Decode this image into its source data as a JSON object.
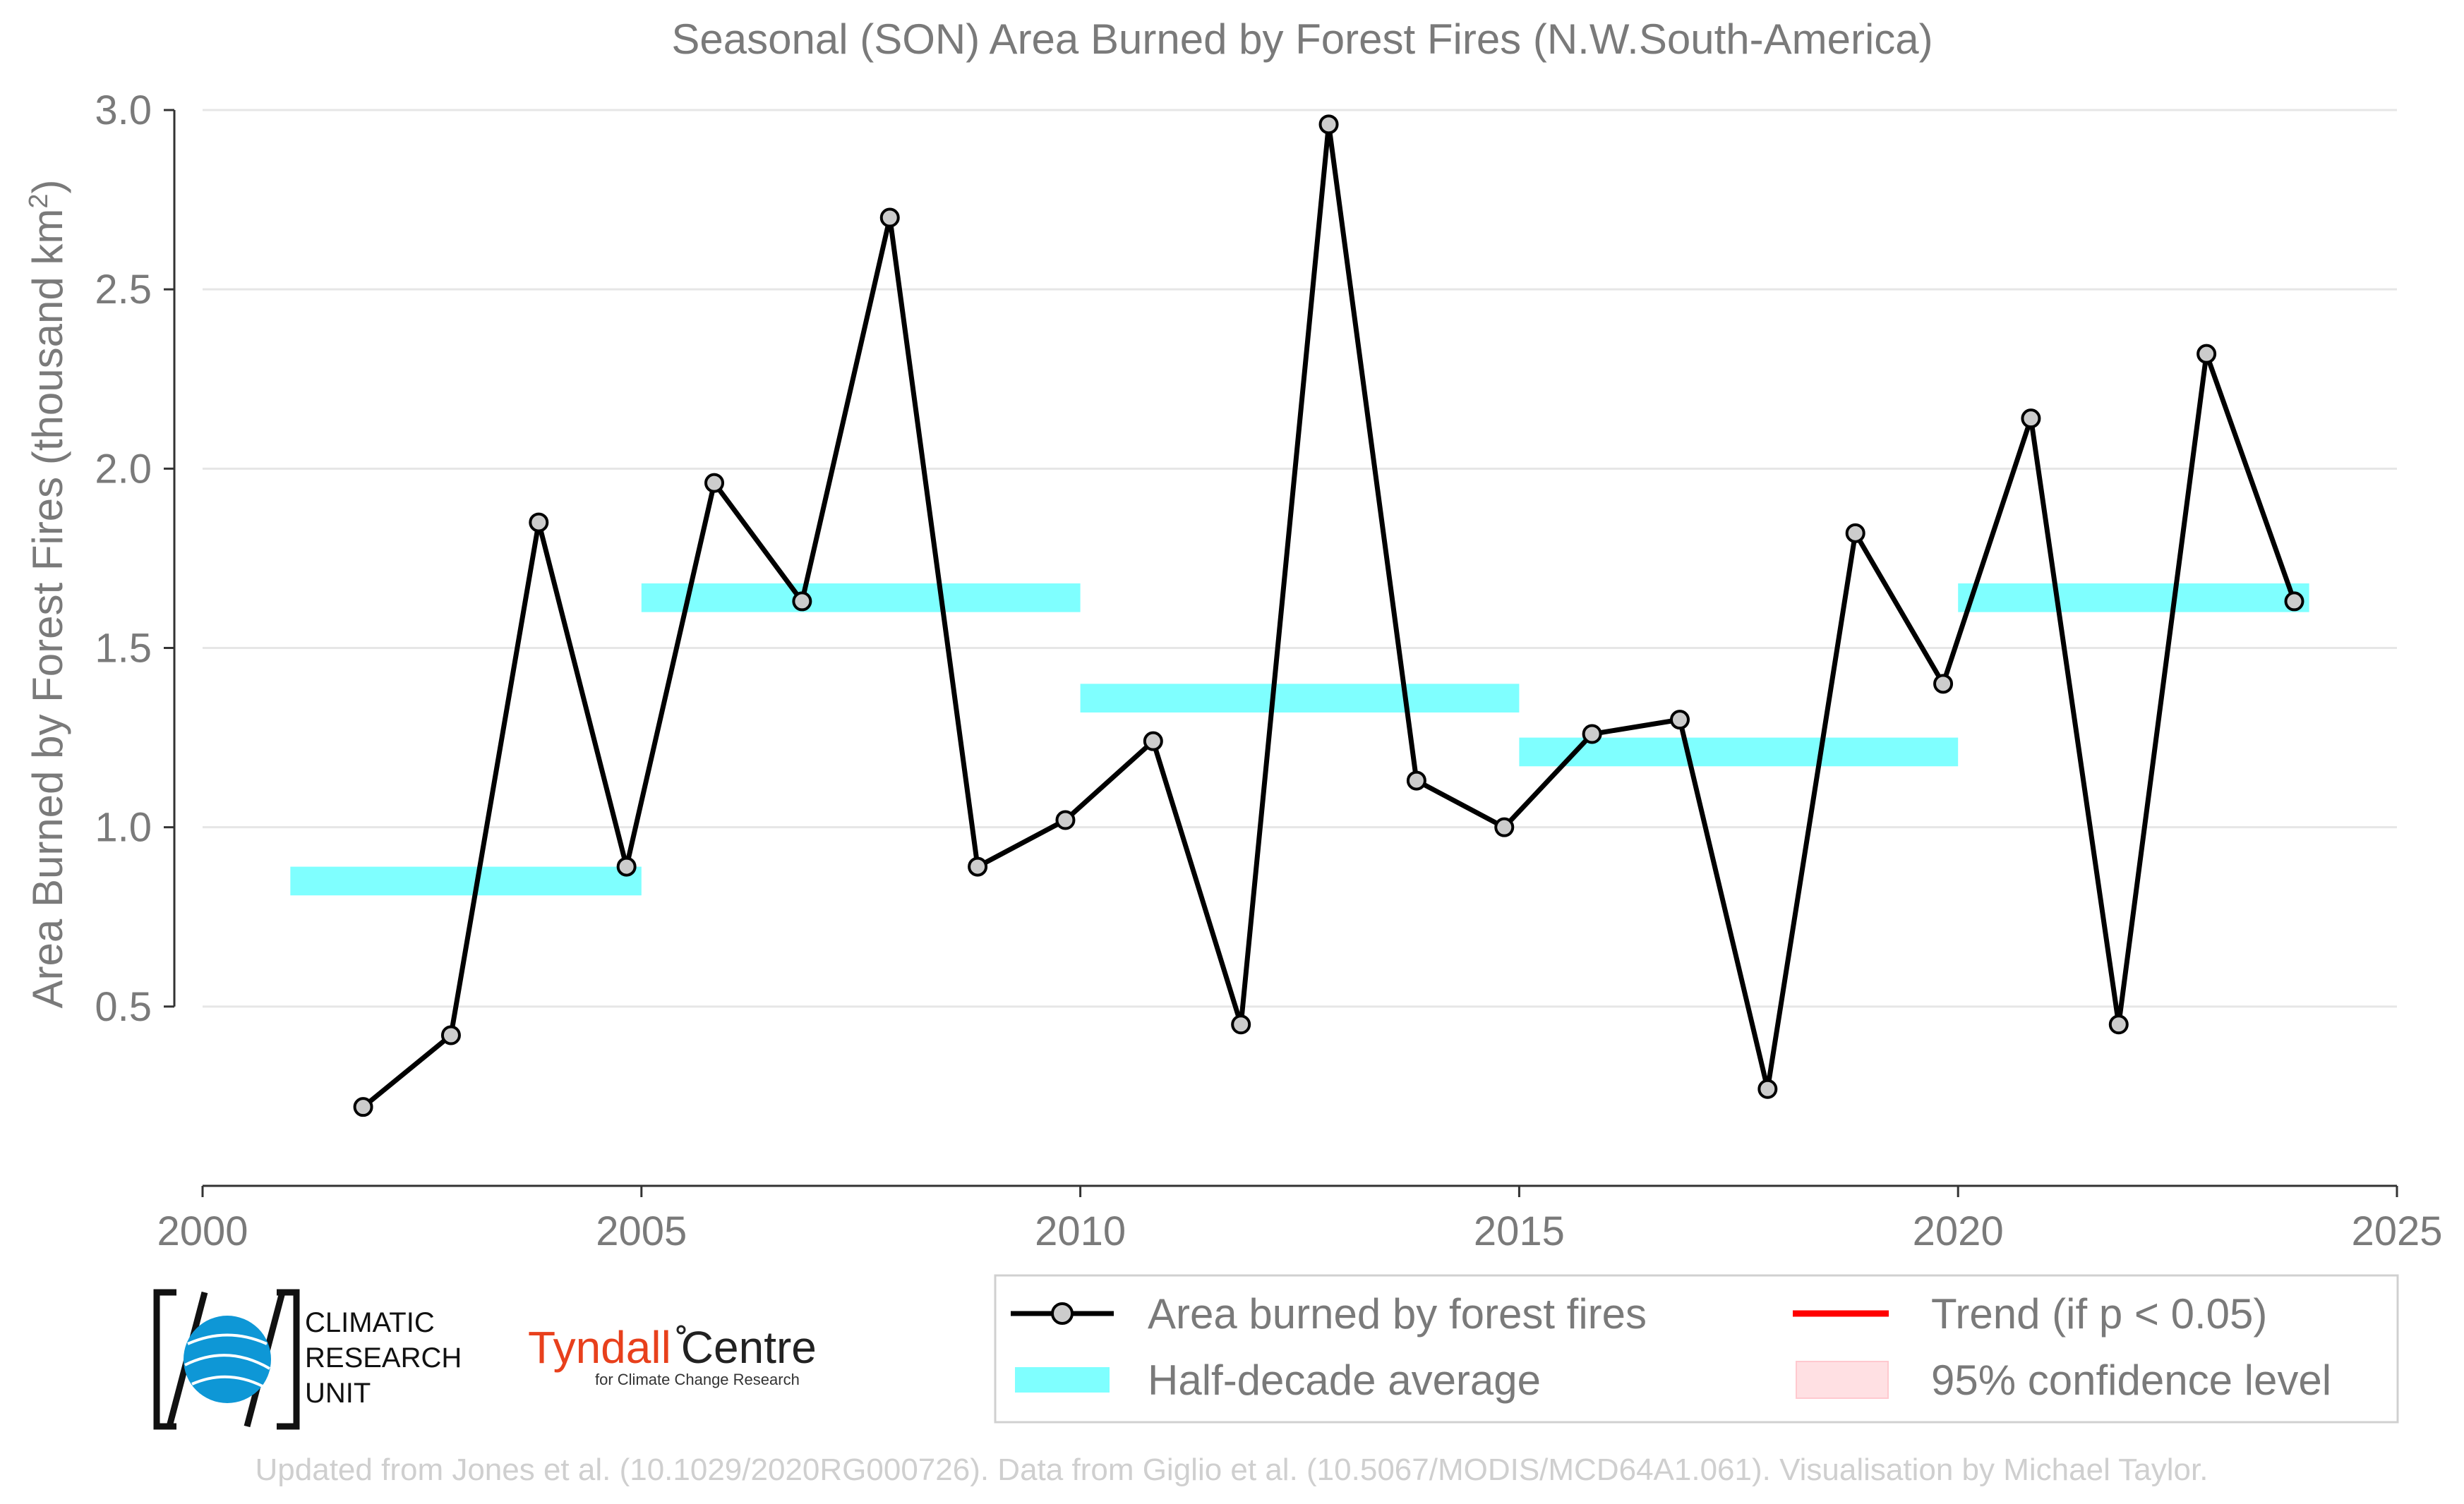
{
  "chart_data": {
    "type": "line",
    "title": "Seasonal (SON) Area Burned by Forest Fires (N.W.South-America)",
    "ylabel": "Area Burned by Forest Fires (thousand km",
    "ylabel_sup": "2",
    "ylabel_close": ")",
    "xlabel": "",
    "xlim": [
      2000,
      2025
    ],
    "ylim": [
      0,
      3.0
    ],
    "xticks": [
      2000,
      2005,
      2010,
      2015,
      2020,
      2025
    ],
    "yticks": [
      0.5,
      1.0,
      1.5,
      2.0,
      2.5,
      3.0
    ],
    "ytick_labels": [
      "0.5",
      "1.0",
      "1.5",
      "2.0",
      "2.5",
      "3.0"
    ],
    "grid": "horizontal",
    "series": [
      {
        "name": "Area burned by forest fires",
        "color": "#000000",
        "marker_fill": "#cccccc",
        "x": [
          2001.83,
          2002.83,
          2003.83,
          2004.83,
          2005.83,
          2006.83,
          2007.83,
          2008.83,
          2009.83,
          2010.83,
          2011.83,
          2012.83,
          2013.83,
          2014.83,
          2015.83,
          2016.83,
          2017.83,
          2018.83,
          2019.83,
          2020.83,
          2021.83,
          2022.83,
          2023.83
        ],
        "y": [
          0.22,
          0.42,
          1.85,
          0.89,
          1.96,
          1.63,
          2.7,
          0.89,
          1.02,
          1.24,
          0.45,
          2.96,
          1.13,
          1.0,
          1.26,
          1.3,
          0.27,
          1.82,
          1.4,
          2.14,
          0.45,
          2.32,
          1.63
        ]
      }
    ],
    "half_decade_average": {
      "name": "Half-decade average",
      "color": "#7fffff",
      "segments": [
        {
          "x0": 2001,
          "x1": 2005,
          "y": 0.85
        },
        {
          "x0": 2005,
          "x1": 2010,
          "y": 1.64
        },
        {
          "x0": 2010,
          "x1": 2015,
          "y": 1.36
        },
        {
          "x0": 2015,
          "x1": 2020,
          "y": 1.21
        },
        {
          "x0": 2020,
          "x1": 2024,
          "y": 1.64
        }
      ]
    },
    "trend": {
      "name": "Trend (if p < 0.05)",
      "color": "#ff0000"
    },
    "confidence": {
      "name": "95% confidence level",
      "color": "#ffe0e3"
    },
    "legend_position": "bottom-right"
  },
  "logos": {
    "cru": [
      "CLIMATIC",
      "RESEARCH",
      "UNIT"
    ],
    "tyndall_main_a": "Tyndall",
    "tyndall_main_b": "Centre",
    "tyndall_sub": "for Climate Change Research"
  },
  "credit": "Updated from Jones et al. (10.1029/2020RG000726). Data from Giglio et al. (10.5067/MODIS/MCD64A1.061). Visualisation by Michael Taylor."
}
